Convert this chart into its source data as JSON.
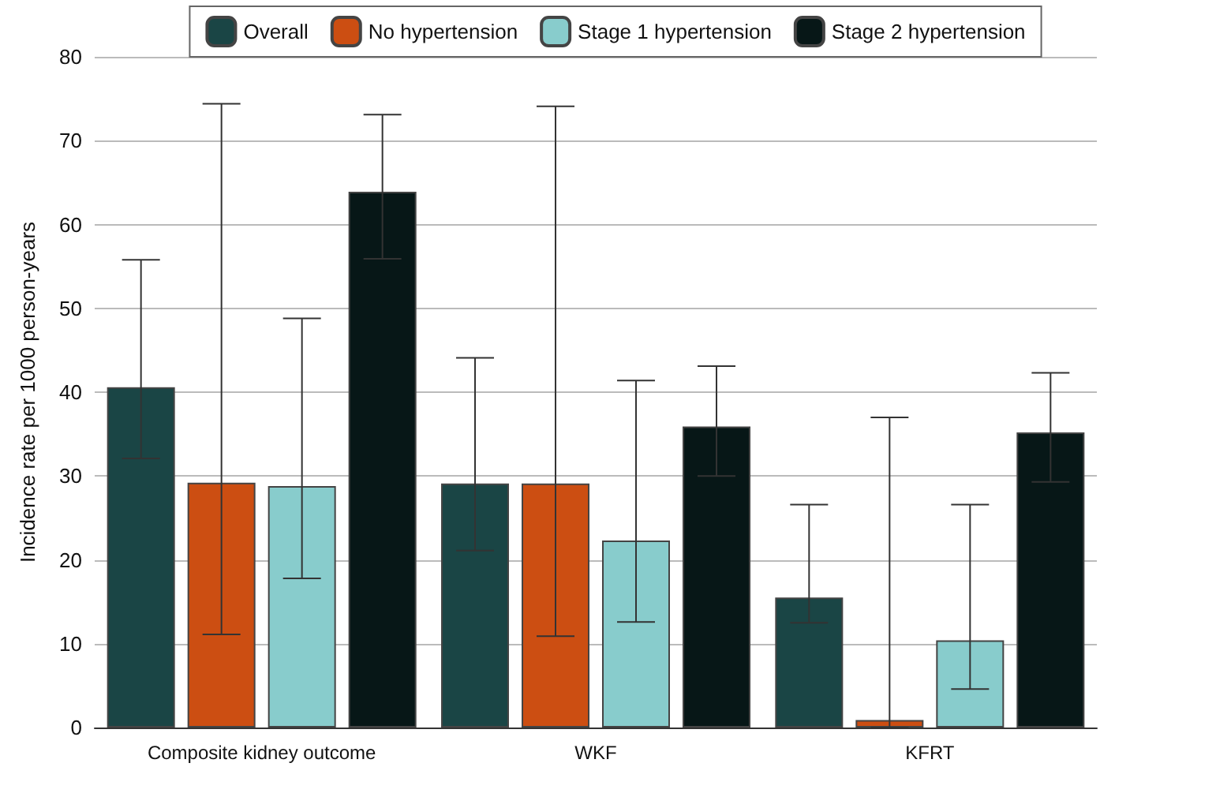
{
  "chart_data": {
    "type": "bar",
    "ylabel": "Incidence rate per 1000 person-years",
    "categories": [
      "Composite kidney outcome",
      "WKF",
      "KFRT"
    ],
    "series": [
      {
        "name": "Overall",
        "color": "#1a4545",
        "values": [
          40.6,
          29.1,
          15.5
        ],
        "errors": [
          [
            32.1,
            55.8
          ],
          [
            21.1,
            44.1
          ],
          [
            12.5,
            26.6
          ]
        ]
      },
      {
        "name": "No hypertension",
        "color": "#cc4e12",
        "values": [
          29.2,
          29.1,
          0.9
        ],
        "errors": [
          [
            11.1,
            74.4
          ],
          [
            10.9,
            74.1
          ],
          [
            0,
            37
          ]
        ]
      },
      {
        "name": "Stage 1 hypertension",
        "color": "#88cccc",
        "values": [
          28.8,
          22.3,
          10.4
        ],
        "errors": [
          [
            17.8,
            48.8
          ],
          [
            12.6,
            41.4
          ],
          [
            4.6,
            26.6
          ]
        ]
      },
      {
        "name": "Stage 2 hypertension",
        "color": "#071717",
        "values": [
          63.9,
          35.9,
          35.2
        ],
        "errors": [
          [
            55.9,
            73.1
          ],
          [
            30,
            43.1
          ],
          [
            29.3,
            42.3
          ]
        ]
      }
    ],
    "ylim": [
      0,
      80
    ],
    "yticks": [
      0,
      10,
      20,
      30,
      40,
      50,
      60,
      70,
      80
    ],
    "grid": "y",
    "legend": "top"
  }
}
